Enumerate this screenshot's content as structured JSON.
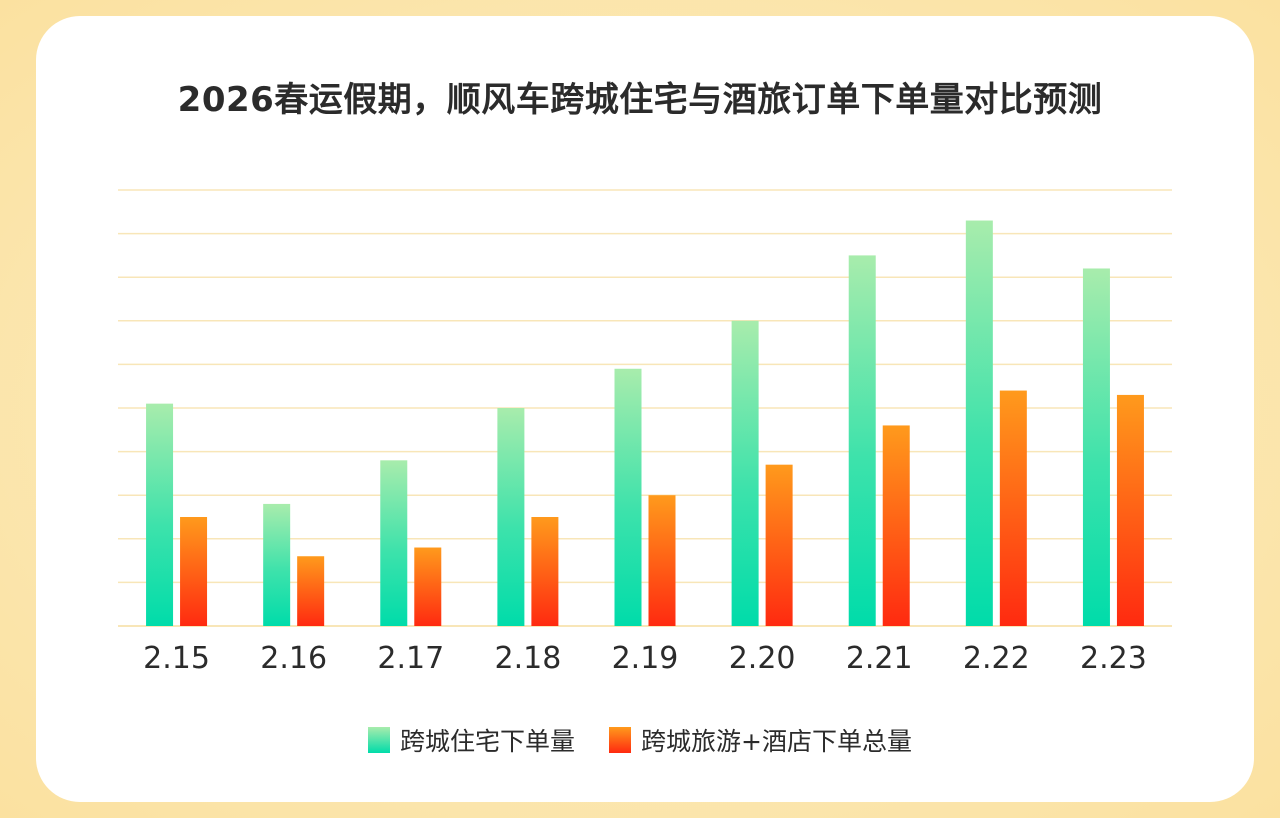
{
  "colors": {
    "series1_top": "#a8ecac",
    "series1_bottom": "#00dcaa",
    "series2_top": "#ff9a1c",
    "series2_bottom": "#ff2a10",
    "grid": "#f8e6b8",
    "text": "#2b2b2b"
  },
  "chart_data": {
    "type": "bar",
    "title": "2026春运假期，顺风车跨城住宅与酒旅订单下单量对比预测",
    "xlabel": "",
    "ylabel": "",
    "ylim": [
      0,
      10
    ],
    "y_ticks_shown": false,
    "grid": true,
    "legend_position": "bottom-center",
    "categories": [
      "2.15",
      "2.16",
      "2.17",
      "2.18",
      "2.19",
      "2.20",
      "2.21",
      "2.22",
      "2.23"
    ],
    "series": [
      {
        "name": "跨城住宅下单量",
        "values": [
          5.1,
          2.8,
          3.8,
          5.0,
          5.9,
          7.0,
          8.5,
          9.3,
          8.2
        ]
      },
      {
        "name": "跨城旅游+酒店下单总量",
        "values": [
          2.5,
          1.6,
          1.8,
          2.5,
          3.0,
          3.7,
          4.6,
          5.4,
          5.3
        ]
      }
    ]
  }
}
